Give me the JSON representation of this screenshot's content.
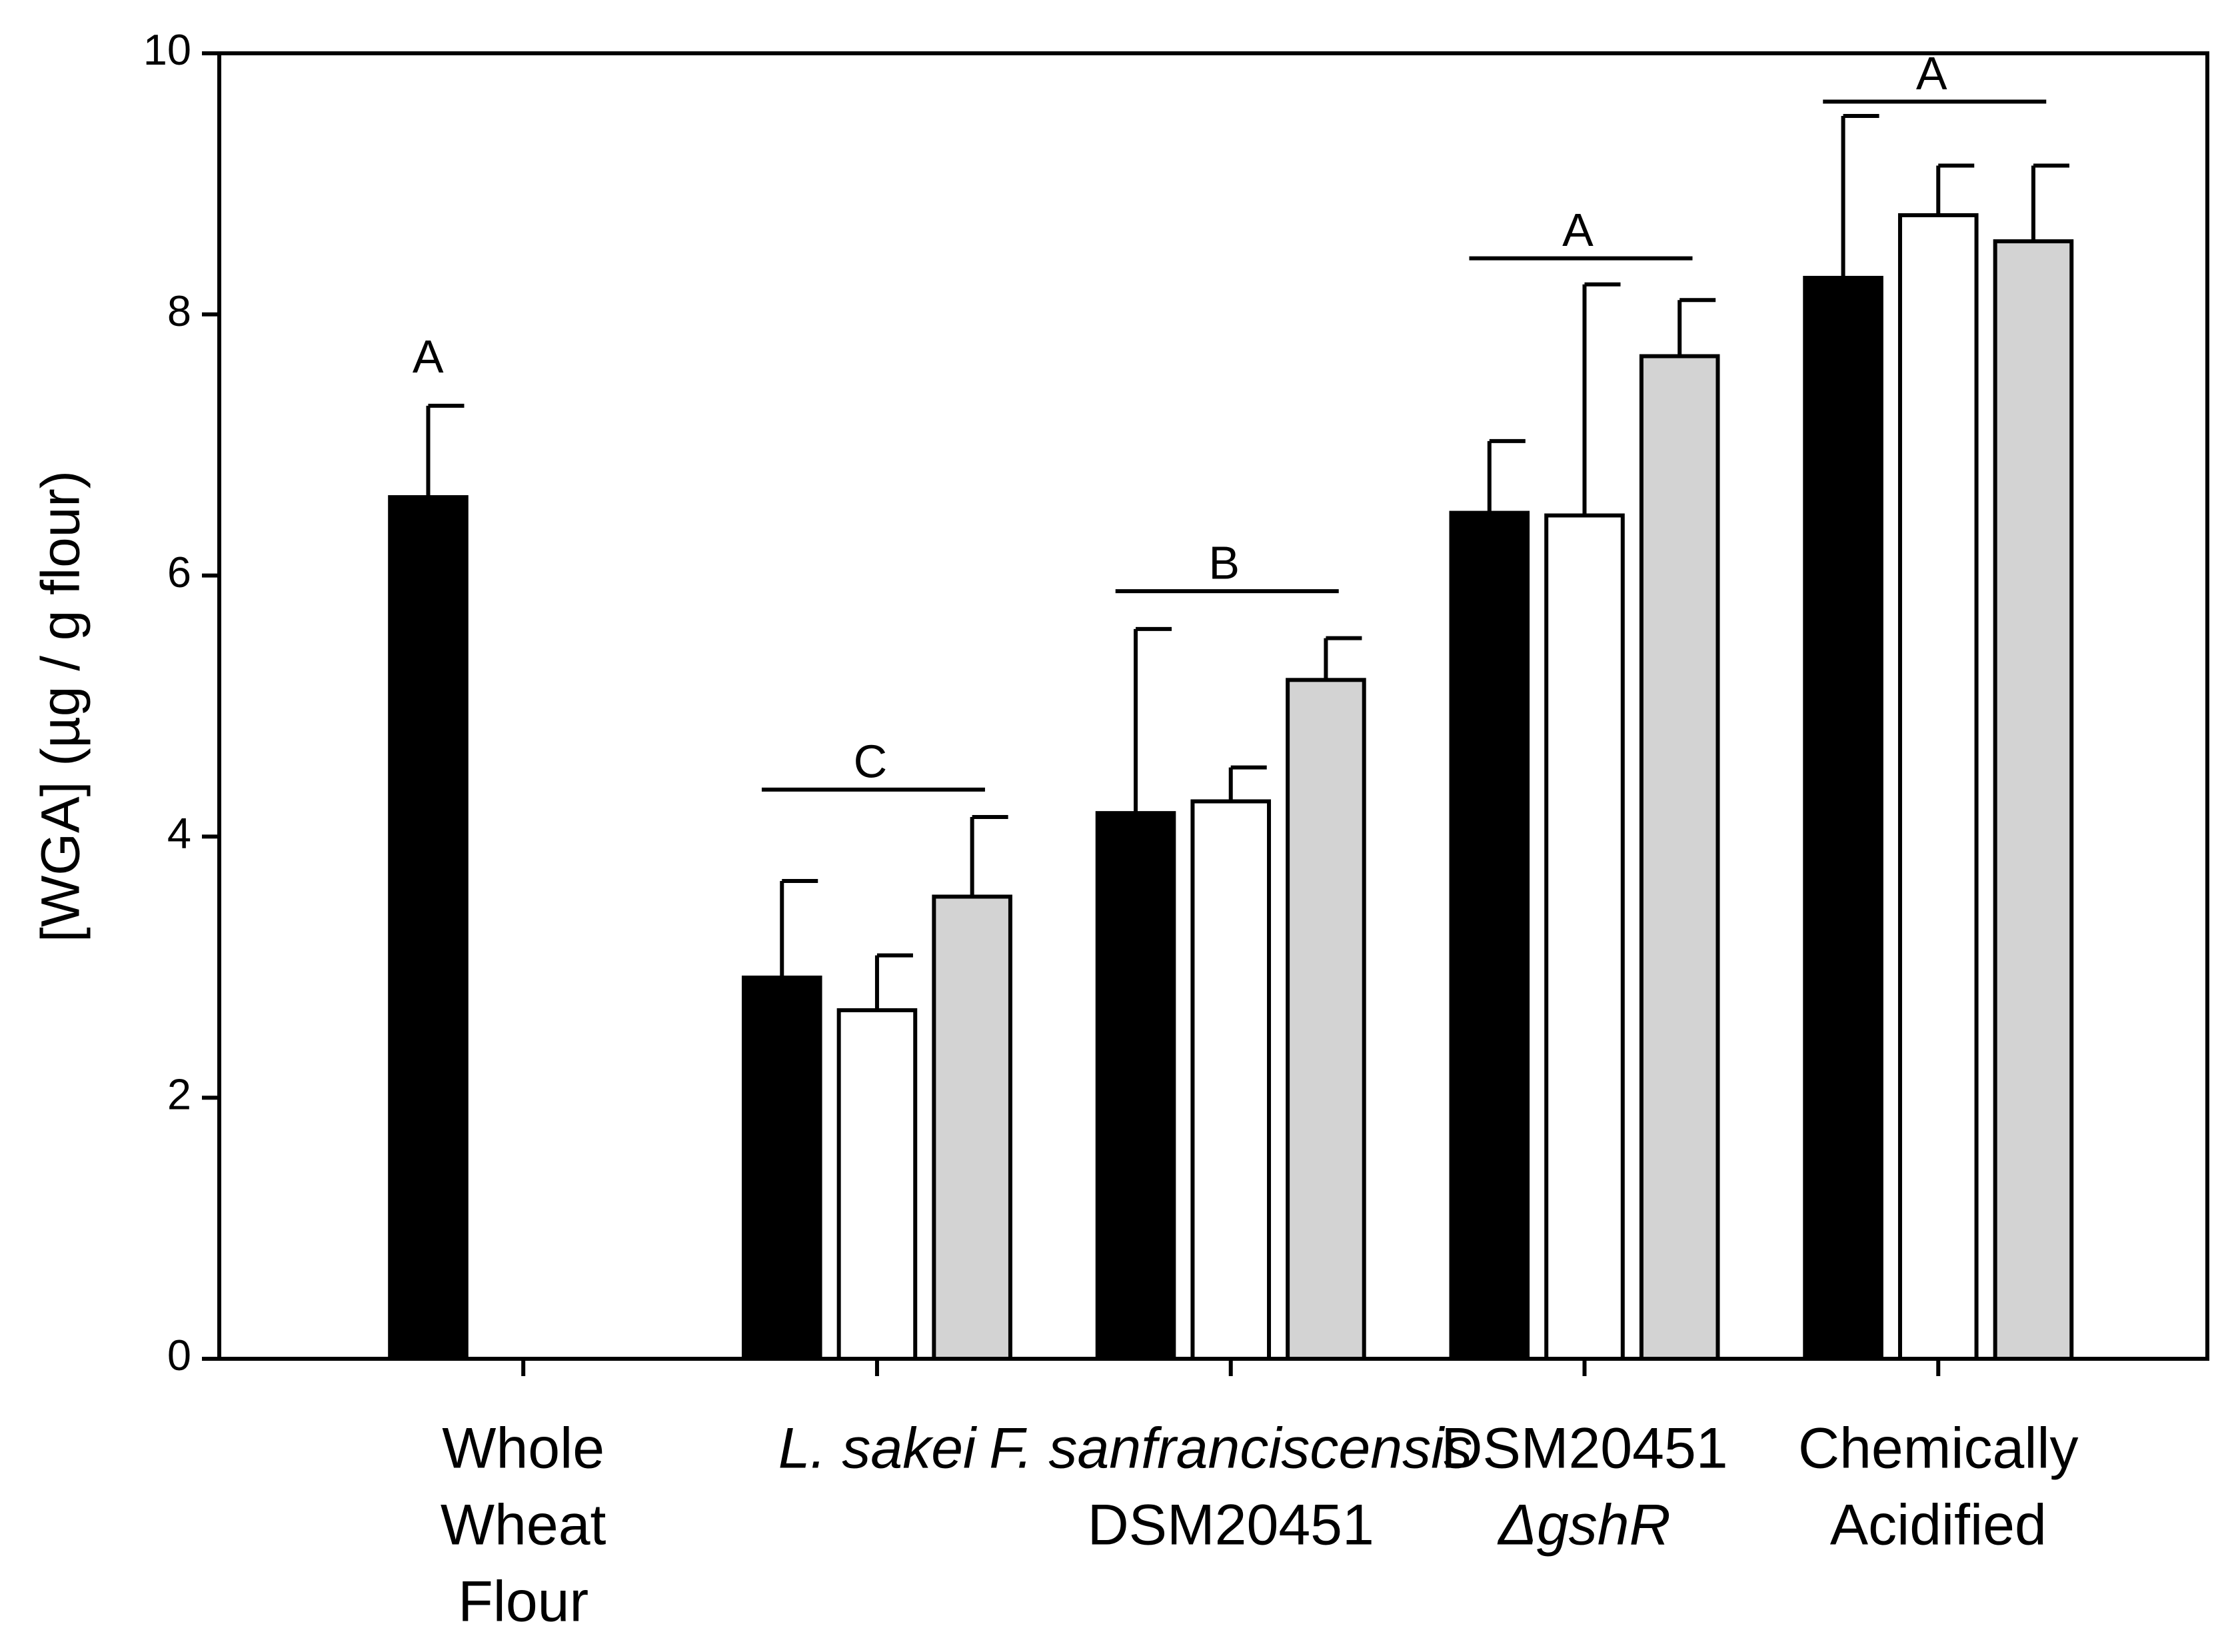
{
  "chart_data": {
    "type": "bar",
    "y_label": "[WGA] (µg / g flour)",
    "categories": [
      [
        "Whole",
        "Wheat",
        "Flour"
      ],
      [
        "L. sakei"
      ],
      [
        "F. sanfranciscensis",
        "DSM20451"
      ],
      [
        "DSM20451",
        "ΔgshR"
      ],
      [
        "Chemically",
        "Acidified"
      ]
    ],
    "category_italic": [
      [
        false,
        false,
        false
      ],
      [
        true
      ],
      [
        true,
        false
      ],
      [
        false,
        true
      ],
      [
        false,
        false
      ]
    ],
    "series": [
      {
        "color": "#000000",
        "values": [
          6.6,
          2.92,
          4.18,
          6.48,
          8.28
        ],
        "errors": [
          0.7,
          0.74,
          1.41,
          0.55,
          1.24
        ]
      },
      {
        "color": "#ffffff",
        "values": [
          null,
          2.67,
          4.27,
          6.46,
          8.76
        ],
        "errors": [
          null,
          0.42,
          0.26,
          1.77,
          0.38
        ]
      },
      {
        "color": "#d3d3d3",
        "values": [
          null,
          3.54,
          5.2,
          7.68,
          8.56
        ],
        "errors": [
          null,
          0.61,
          0.32,
          0.43,
          0.58
        ]
      }
    ],
    "annotations": [
      {
        "text": "A",
        "category": 0,
        "y": 7.65,
        "line": false
      },
      {
        "text": "C",
        "category": 1,
        "y": 4.36,
        "line": true
      },
      {
        "text": "B",
        "category": 2,
        "y": 5.88,
        "line": true
      },
      {
        "text": "A",
        "category": 3,
        "y": 8.43,
        "line": true
      },
      {
        "text": "A",
        "category": 4,
        "y": 9.63,
        "line": true
      }
    ],
    "ylim": [
      0,
      10
    ],
    "yticks": [
      0,
      2,
      4,
      6,
      8,
      10
    ],
    "grid": false
  }
}
